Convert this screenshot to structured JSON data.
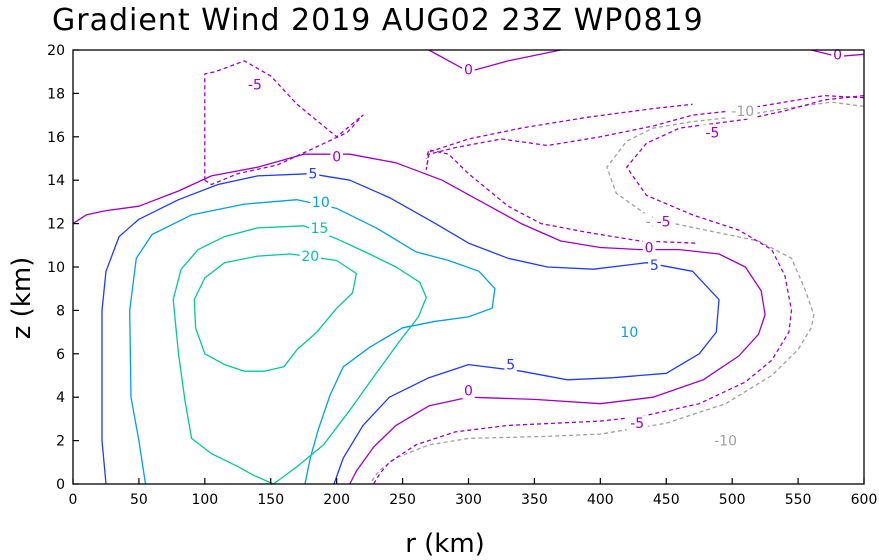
{
  "chart_data": {
    "type": "contour",
    "title": "Gradient Wind 2019 AUG02 23Z  WP0819",
    "xlabel": "r (km)",
    "ylabel": "z (km)",
    "xlim": [
      0,
      600
    ],
    "ylim": [
      0,
      20
    ],
    "xticks": [
      0,
      50,
      100,
      150,
      200,
      250,
      300,
      350,
      400,
      450,
      500,
      550,
      600
    ],
    "yticks": [
      0,
      2,
      4,
      6,
      8,
      10,
      12,
      14,
      16,
      18,
      20
    ],
    "colors": {
      "neg10": "#a0a0a0",
      "neg5": "#a000c8",
      "zero": "#a000c8",
      "c5": "#1e3cff",
      "c10": "#00a0e6",
      "c15": "#00c8a0",
      "c20": "#00c8a0"
    },
    "contours": [
      {
        "level": -10,
        "label": "-10",
        "dashed": true,
        "color": "#a0a0a0",
        "lines": [
          [
            [
              600,
              17.4
            ],
            [
              575,
              17.6
            ],
            [
              540,
              17.3
            ],
            [
              500,
              16.9
            ],
            [
              470,
              16.7
            ],
            [
              440,
              16.4
            ],
            [
              420,
              15.8
            ],
            [
              405,
              14.6
            ],
            [
              412,
              13.4
            ],
            [
              440,
              12.2
            ],
            [
              480,
              11.7
            ],
            [
              520,
              11.2
            ],
            [
              545,
              10.4
            ],
            [
              555,
              9.0
            ],
            [
              562,
              7.8
            ],
            [
              560,
              7.2
            ],
            [
              550,
              6.2
            ],
            [
              530,
              5.0
            ],
            [
              495,
              3.7
            ],
            [
              450,
              2.8
            ],
            [
              400,
              2.3
            ],
            [
              360,
              2.2
            ],
            [
              300,
              2.1
            ],
            [
              270,
              1.8
            ],
            [
              245,
              1.2
            ],
            [
              232,
              0.6
            ],
            [
              225,
              0
            ]
          ]
        ],
        "labels": [
          [
            508,
            17.2
          ],
          [
            443,
            12.1
          ],
          [
            495,
            2.0
          ]
        ]
      },
      {
        "level": -5,
        "label": "-5",
        "dashed": true,
        "color": "#a000c8",
        "lines": [
          [
            [
              600,
              17.8
            ],
            [
              570,
              17.9
            ],
            [
              540,
              17.6
            ],
            [
              500,
              17.2
            ],
            [
              470,
              17.0
            ],
            [
              440,
              16.5
            ],
            [
              400,
              16.0
            ],
            [
              360,
              15.6
            ],
            [
              325,
              15.9
            ],
            [
              290,
              15.5
            ],
            [
              270,
              15.2
            ],
            [
              268,
              14.5
            ],
            [
              270,
              15.3
            ],
            [
              300,
              15.9
            ],
            [
              340,
              16.4
            ],
            [
              390,
              16.9
            ],
            [
              440,
              17.3
            ],
            [
              470,
              17.5
            ]
          ],
          [
            [
              472,
              11.1
            ],
            [
              430,
              11.2
            ],
            [
              390,
              11.6
            ],
            [
              355,
              12.0
            ],
            [
              330,
              12.8
            ],
            [
              300,
              14.3
            ],
            [
              285,
              15.2
            ],
            [
              270,
              15.4
            ],
            [
              268,
              15.0
            ]
          ],
          [
            [
              100,
              14.0
            ],
            [
              100,
              18.9
            ],
            [
              108,
              19.0
            ],
            [
              130,
              19.5
            ],
            [
              150,
              18.8
            ],
            [
              170,
              17.5
            ],
            [
              200,
              16.0
            ],
            [
              220,
              17.0
            ],
            [
              208,
              16.2
            ],
            [
              180,
              15.4
            ],
            [
              155,
              14.7
            ],
            [
              125,
              14.3
            ],
            [
              105,
              13.8
            ],
            [
              100,
              14.0
            ]
          ],
          [
            [
              600,
              17.9
            ],
            [
              570,
              17.7
            ],
            [
              540,
              17.2
            ],
            [
              510,
              16.8
            ],
            [
              485,
              16.6
            ],
            [
              460,
              16.4
            ],
            [
              435,
              15.7
            ],
            [
              420,
              14.6
            ],
            [
              435,
              13.3
            ],
            [
              470,
              12.4
            ],
            [
              505,
              11.7
            ],
            [
              530,
              10.8
            ],
            [
              540,
              9.6
            ],
            [
              545,
              8.0
            ],
            [
              543,
              7.0
            ],
            [
              530,
              5.7
            ],
            [
              510,
              4.7
            ],
            [
              475,
              3.7
            ],
            [
              430,
              3.1
            ],
            [
              400,
              2.9
            ],
            [
              330,
              2.7
            ],
            [
              290,
              2.4
            ],
            [
              260,
              1.8
            ],
            [
              240,
              1.0
            ],
            [
              233,
              0.5
            ],
            [
              228,
              0
            ]
          ]
        ],
        "labels": [
          [
            138,
            18.4
          ],
          [
            485,
            16.2
          ],
          [
            448,
            12.1
          ],
          [
            428,
            2.8
          ]
        ]
      },
      {
        "level": 0,
        "label": "0",
        "dashed": false,
        "color": "#a000c8",
        "lines": [
          [
            [
              0,
              12.0
            ],
            [
              10,
              12.4
            ],
            [
              25,
              12.6
            ],
            [
              50,
              12.8
            ],
            [
              80,
              13.5
            ],
            [
              105,
              14.2
            ],
            [
              140,
              14.6
            ],
            [
              175,
              15.2
            ],
            [
              210,
              15.2
            ],
            [
              245,
              14.8
            ],
            [
              280,
              14.0
            ],
            [
              310,
              13.0
            ],
            [
              340,
              12.0
            ],
            [
              370,
              11.2
            ],
            [
              400,
              10.9
            ],
            [
              430,
              10.8
            ],
            [
              460,
              10.8
            ],
            [
              490,
              10.6
            ],
            [
              510,
              10.0
            ],
            [
              522,
              8.9
            ],
            [
              525,
              7.8
            ],
            [
              520,
              6.9
            ],
            [
              505,
              5.9
            ],
            [
              478,
              4.8
            ],
            [
              440,
              4.0
            ],
            [
              400,
              3.7
            ],
            [
              350,
              3.9
            ],
            [
              300,
              4.0
            ],
            [
              270,
              3.6
            ],
            [
              245,
              2.7
            ],
            [
              228,
              1.7
            ],
            [
              215,
              0.6
            ],
            [
              210,
              0
            ]
          ],
          [
            [
              270,
              20
            ],
            [
              300,
              19.0
            ],
            [
              330,
              19.5
            ],
            [
              370,
              20
            ]
          ],
          [
            [
              560,
              20
            ],
            [
              580,
              19.7
            ],
            [
              600,
              19.8
            ]
          ]
        ],
        "labels": [
          [
            200,
            15.1
          ],
          [
            437,
            10.9
          ],
          [
            300,
            19.1
          ],
          [
            580,
            19.8
          ],
          [
            300,
            4.3
          ]
        ]
      },
      {
        "level": 5,
        "label": "5",
        "dashed": false,
        "color": "#1e3cff",
        "lines": [
          [
            [
              25,
              0
            ],
            [
              22,
              2
            ],
            [
              22,
              8
            ],
            [
              25,
              9.8
            ],
            [
              35,
              11.4
            ],
            [
              50,
              12.2
            ],
            [
              80,
              13.1
            ],
            [
              110,
              13.8
            ],
            [
              140,
              14.2
            ],
            [
              180,
              14.3
            ],
            [
              210,
              14.0
            ],
            [
              240,
              13.2
            ],
            [
              275,
              12.0
            ],
            [
              300,
              11.1
            ],
            [
              330,
              10.4
            ],
            [
              360,
              10.0
            ],
            [
              395,
              9.9
            ],
            [
              435,
              10.2
            ],
            [
              470,
              9.8
            ],
            [
              490,
              8.5
            ],
            [
              488,
              7.0
            ],
            [
              475,
              6.0
            ],
            [
              450,
              5.1
            ],
            [
              410,
              4.9
            ],
            [
              375,
              4.8
            ],
            [
              340,
              5.2
            ],
            [
              300,
              5.5
            ],
            [
              270,
              4.9
            ],
            [
              240,
              4.0
            ],
            [
              220,
              2.7
            ],
            [
              205,
              1.2
            ],
            [
              198,
              0
            ]
          ]
        ],
        "labels": [
          [
            182,
            14.3
          ],
          [
            441,
            10.1
          ],
          [
            332,
            5.5
          ]
        ]
      },
      {
        "level": 10,
        "label": "10",
        "dashed": false,
        "color": "#00a0e6",
        "lines": [
          [
            [
              55,
              0
            ],
            [
              50,
              2
            ],
            [
              44,
              4
            ],
            [
              43,
              8
            ],
            [
              48,
              10.4
            ],
            [
              60,
              11.5
            ],
            [
              90,
              12.4
            ],
            [
              130,
              12.9
            ],
            [
              170,
              13.1
            ],
            [
              200,
              12.7
            ],
            [
              230,
              11.8
            ],
            [
              260,
              10.7
            ],
            [
              285,
              10.3
            ],
            [
              308,
              9.8
            ],
            [
              320,
              9.0
            ],
            [
              318,
              8.1
            ],
            [
              300,
              7.7
            ],
            [
              275,
              7.5
            ],
            [
              250,
              7.2
            ],
            [
              225,
              6.3
            ],
            [
              205,
              5.4
            ],
            [
              195,
              4.1
            ],
            [
              186,
              2.5
            ],
            [
              180,
              1.2
            ],
            [
              176,
              0
            ]
          ]
        ],
        "labels": [
          [
            188,
            13.0
          ],
          [
            422,
            7.0
          ]
        ]
      },
      {
        "level": 15,
        "label": "15",
        "dashed": false,
        "color": "#00c8a0",
        "lines": [
          [
            [
              152,
              0
            ],
            [
              137,
              0.4
            ],
            [
              125,
              0.8
            ],
            [
              105,
              1.4
            ],
            [
              90,
              2.1
            ],
            [
              85,
              3.8
            ],
            [
              80,
              6.0
            ],
            [
              76,
              8.5
            ],
            [
              82,
              9.9
            ],
            [
              95,
              10.8
            ],
            [
              115,
              11.4
            ],
            [
              140,
              11.8
            ],
            [
              175,
              11.9
            ],
            [
              200,
              11.3
            ],
            [
              225,
              10.6
            ],
            [
              245,
              10.0
            ],
            [
              263,
              9.3
            ],
            [
              268,
              8.6
            ],
            [
              262,
              7.7
            ],
            [
              248,
              6.6
            ],
            [
              230,
              5.1
            ],
            [
              210,
              3.4
            ],
            [
              190,
              1.8
            ],
            [
              170,
              0.8
            ],
            [
              152,
              0
            ]
          ]
        ],
        "labels": [
          [
            187,
            11.8
          ]
        ]
      },
      {
        "level": 20,
        "label": "20",
        "dashed": false,
        "color": "#00c8a0",
        "lines": [
          [
            [
              130,
              5.2
            ],
            [
              115,
              5.5
            ],
            [
              100,
              6.0
            ],
            [
              93,
              7.2
            ],
            [
              92,
              8.5
            ],
            [
              100,
              9.5
            ],
            [
              115,
              10.2
            ],
            [
              140,
              10.5
            ],
            [
              165,
              10.6
            ],
            [
              200,
              10.3
            ],
            [
              215,
              9.7
            ],
            [
              212,
              8.8
            ],
            [
              200,
              8.1
            ],
            [
              185,
              7.0
            ],
            [
              170,
              6.2
            ],
            [
              160,
              5.4
            ],
            [
              145,
              5.2
            ],
            [
              130,
              5.2
            ]
          ]
        ],
        "labels": [
          [
            180,
            10.5
          ]
        ]
      }
    ]
  }
}
